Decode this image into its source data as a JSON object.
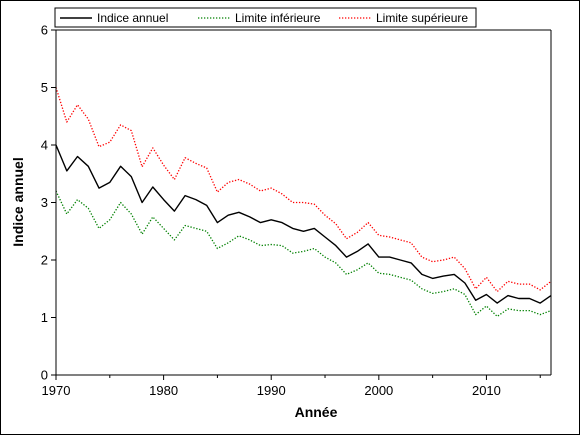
{
  "chart_data": {
    "type": "line",
    "title": "",
    "xlabel": "Année",
    "ylabel": "Indice annuel",
    "xlim": [
      1970,
      2016
    ],
    "ylim": [
      0,
      6
    ],
    "xticks": [
      1970,
      1980,
      1990,
      2000,
      2010
    ],
    "yticks": [
      0,
      1,
      2,
      3,
      4,
      5,
      6
    ],
    "grid": false,
    "legend_position": "top",
    "x": [
      1970,
      1971,
      1972,
      1973,
      1974,
      1975,
      1976,
      1977,
      1978,
      1979,
      1980,
      1981,
      1982,
      1983,
      1984,
      1985,
      1986,
      1987,
      1988,
      1989,
      1990,
      1991,
      1992,
      1993,
      1994,
      1995,
      1996,
      1997,
      1998,
      1999,
      2000,
      2001,
      2002,
      2003,
      2004,
      2005,
      2006,
      2007,
      2008,
      2009,
      2010,
      2011,
      2012,
      2013,
      2014,
      2015,
      2016
    ],
    "series": [
      {
        "name": "Indice annuel",
        "color": "#000000",
        "style": "solid",
        "values": [
          4.0,
          3.55,
          3.8,
          3.63,
          3.25,
          3.35,
          3.63,
          3.45,
          3.0,
          3.27,
          3.05,
          2.85,
          3.12,
          3.05,
          2.95,
          2.65,
          2.78,
          2.83,
          2.75,
          2.65,
          2.7,
          2.65,
          2.55,
          2.5,
          2.55,
          2.4,
          2.25,
          2.05,
          2.15,
          2.28,
          2.05,
          2.05,
          2.0,
          1.95,
          1.75,
          1.68,
          1.72,
          1.75,
          1.6,
          1.3,
          1.4,
          1.25,
          1.38,
          1.33,
          1.33,
          1.25,
          1.38
        ]
      },
      {
        "name": "Limite inférieure",
        "color": "#008000",
        "style": "dotted",
        "values": [
          3.2,
          2.8,
          3.05,
          2.9,
          2.55,
          2.7,
          3.0,
          2.8,
          2.45,
          2.75,
          2.55,
          2.35,
          2.6,
          2.55,
          2.5,
          2.2,
          2.3,
          2.42,
          2.35,
          2.25,
          2.27,
          2.25,
          2.12,
          2.15,
          2.2,
          2.05,
          1.95,
          1.75,
          1.83,
          1.95,
          1.77,
          1.75,
          1.7,
          1.65,
          1.5,
          1.42,
          1.45,
          1.5,
          1.4,
          1.05,
          1.2,
          1.02,
          1.15,
          1.12,
          1.12,
          1.05,
          1.12
        ]
      },
      {
        "name": "Limite supérieure",
        "color": "#ff0000",
        "style": "dotted",
        "values": [
          5.0,
          4.4,
          4.7,
          4.45,
          3.97,
          4.05,
          4.35,
          4.25,
          3.62,
          3.95,
          3.65,
          3.4,
          3.78,
          3.68,
          3.6,
          3.18,
          3.35,
          3.4,
          3.32,
          3.2,
          3.25,
          3.15,
          3.0,
          3.0,
          2.97,
          2.78,
          2.63,
          2.37,
          2.48,
          2.65,
          2.43,
          2.4,
          2.35,
          2.3,
          2.05,
          1.97,
          2.0,
          2.05,
          1.85,
          1.5,
          1.7,
          1.45,
          1.63,
          1.58,
          1.58,
          1.48,
          1.63
        ]
      }
    ]
  }
}
